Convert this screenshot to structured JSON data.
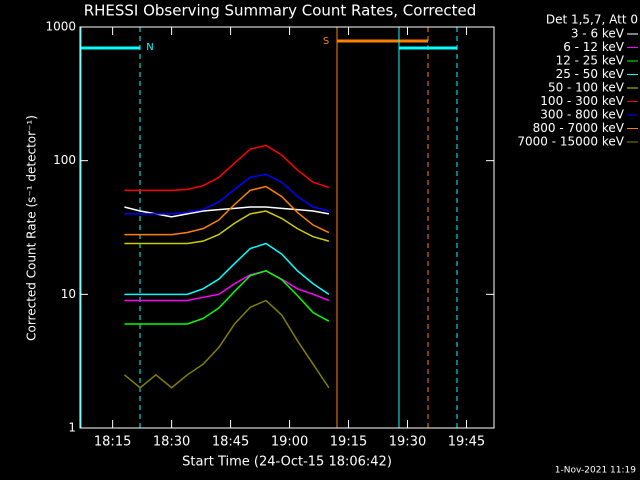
{
  "chart_data": {
    "type": "line",
    "title": "RHESSI Observing Summary Count Rates, Corrected",
    "x_label": "Start Time (24-Oct-15 18:06:42)",
    "y_label": "Corrected Count Rate (s⁻¹ detector⁻¹)",
    "legend_title": "Det 1,5,7, Att 0",
    "footer": "1-Nov-2021 11:19",
    "annotations": [
      "N",
      "S"
    ],
    "log_y": true,
    "xlim": [
      6.7,
      112
    ],
    "ylim": [
      1,
      1000
    ],
    "xticks": [
      {
        "value": 15,
        "label": "18:15"
      },
      {
        "value": 30,
        "label": "18:30"
      },
      {
        "value": 45,
        "label": "18:45"
      },
      {
        "value": 60,
        "label": "19:00"
      },
      {
        "value": 75,
        "label": "19:15"
      },
      {
        "value": 90,
        "label": "19:30"
      },
      {
        "value": 105,
        "label": "19:45"
      }
    ],
    "yticks": [
      1,
      10,
      100,
      1000
    ],
    "x": [
      18,
      22,
      26,
      30,
      34,
      38,
      42,
      46,
      50,
      54,
      58,
      62,
      66,
      70
    ],
    "series": [
      {
        "name": "3 - 6 keV",
        "color": "#ffffff",
        "values": [
          45,
          42,
          40,
          38,
          40,
          42,
          43,
          44,
          45,
          45,
          44,
          43,
          42,
          40
        ]
      },
      {
        "name": "6 - 12 keV",
        "color": "#ff00ff",
        "values": [
          9,
          9,
          9,
          9,
          9,
          9.5,
          10,
          12,
          14,
          15,
          13,
          11,
          10,
          9
        ]
      },
      {
        "name": "12 - 25 keV",
        "color": "#00ff00",
        "values": [
          6,
          6,
          6,
          6,
          6,
          6.6,
          7.9,
          10.5,
          13.8,
          15,
          12.9,
          9.8,
          7.3,
          6.3
        ]
      },
      {
        "name": "25 - 50 keV",
        "color": "#00ffff",
        "values": [
          10,
          10,
          10,
          10,
          10,
          11,
          13,
          17,
          22,
          24,
          20,
          15,
          12,
          10
        ]
      },
      {
        "name": "50 - 100 keV",
        "color": "#cccc00",
        "values": [
          24,
          24,
          24,
          24,
          24,
          25,
          28,
          34,
          40,
          42,
          37,
          31,
          27,
          25
        ]
      },
      {
        "name": "100 - 300 keV",
        "color": "#ff0000",
        "values": [
          60,
          60,
          60,
          60,
          61,
          65,
          75,
          96,
          122,
          130,
          110,
          85,
          69,
          63
        ]
      },
      {
        "name": "300 - 800 keV",
        "color": "#0000ff",
        "values": [
          40,
          40,
          40,
          40,
          41,
          43,
          49,
          61,
          75,
          79,
          69,
          54,
          45,
          42
        ]
      },
      {
        "name": "800 - 7000 keV",
        "color": "#ff8000",
        "values": [
          28,
          28,
          28,
          28,
          29,
          31,
          36,
          47,
          60,
          64,
          54,
          41,
          33,
          29
        ]
      },
      {
        "name": "7000 - 15000 keV",
        "color": "#808000",
        "values": [
          2.5,
          2,
          2.5,
          2,
          2.5,
          3,
          4,
          6,
          8,
          9,
          7,
          4.5,
          3,
          2
        ]
      }
    ]
  }
}
